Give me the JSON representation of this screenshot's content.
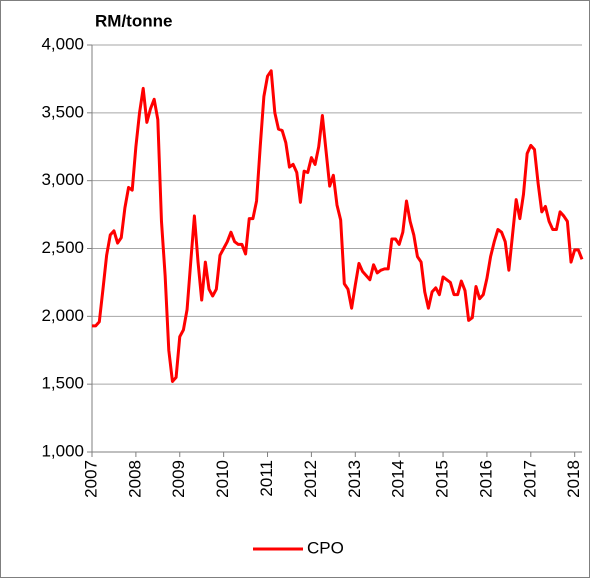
{
  "chart_data": {
    "type": "line",
    "ylabel": "RM/tonne",
    "categories": [
      "2007",
      null,
      null,
      null,
      null,
      null,
      null,
      null,
      null,
      null,
      null,
      null,
      "2008",
      null,
      null,
      null,
      null,
      null,
      null,
      null,
      null,
      null,
      null,
      null,
      "2009",
      null,
      null,
      null,
      null,
      null,
      null,
      null,
      null,
      null,
      null,
      null,
      "2010",
      null,
      null,
      null,
      null,
      null,
      null,
      null,
      null,
      null,
      null,
      null,
      "2011",
      null,
      null,
      null,
      null,
      null,
      null,
      null,
      null,
      null,
      null,
      null,
      "2012",
      null,
      null,
      null,
      null,
      null,
      null,
      null,
      null,
      null,
      null,
      null,
      "2013",
      null,
      null,
      null,
      null,
      null,
      null,
      null,
      null,
      null,
      null,
      null,
      "2014",
      null,
      null,
      null,
      null,
      null,
      null,
      null,
      null,
      null,
      null,
      null,
      "2015",
      null,
      null,
      null,
      null,
      null,
      null,
      null,
      null,
      null,
      null,
      null,
      "2016",
      null,
      null,
      null,
      null,
      null,
      null,
      null,
      null,
      null,
      null,
      null,
      "2017",
      null,
      null,
      null,
      null,
      null,
      null,
      null,
      null,
      null,
      null,
      null,
      "2018",
      null,
      null
    ],
    "series": [
      {
        "name": "CPO",
        "color": "#ff0000",
        "values": [
          1930,
          1930,
          1960,
          2200,
          2450,
          2600,
          2630,
          2540,
          2580,
          2800,
          2950,
          2930,
          3250,
          3500,
          3680,
          3430,
          3530,
          3600,
          3450,
          2700,
          2300,
          1750,
          1520,
          1550,
          1850,
          1900,
          2050,
          2400,
          2740,
          2400,
          2120,
          2400,
          2200,
          2150,
          2200,
          2450,
          2500,
          2550,
          2620,
          2550,
          2530,
          2530,
          2460,
          2720,
          2720,
          2850,
          3250,
          3620,
          3770,
          3810,
          3500,
          3380,
          3370,
          3280,
          3100,
          3120,
          3060,
          2840,
          3070,
          3060,
          3170,
          3120,
          3250,
          3480,
          3220,
          2960,
          3040,
          2820,
          2710,
          2240,
          2200,
          2060,
          2230,
          2390,
          2330,
          2300,
          2270,
          2380,
          2320,
          2340,
          2350,
          2350,
          2570,
          2570,
          2530,
          2620,
          2850,
          2700,
          2600,
          2440,
          2400,
          2180,
          2060,
          2180,
          2210,
          2160,
          2290,
          2270,
          2250,
          2160,
          2160,
          2260,
          2190,
          1970,
          1990,
          2220,
          2130,
          2160,
          2280,
          2440,
          2550,
          2640,
          2620,
          2550,
          2340,
          2600,
          2860,
          2720,
          2900,
          3200,
          3260,
          3230,
          2980,
          2770,
          2810,
          2700,
          2640,
          2640,
          2770,
          2740,
          2700,
          2400,
          2490,
          2490,
          2420
        ]
      }
    ],
    "ylim": [
      1000,
      4000
    ],
    "yticks": [
      {
        "value": 1000,
        "label": "1,000"
      },
      {
        "value": 1500,
        "label": "1,500"
      },
      {
        "value": 2000,
        "label": "2,000"
      },
      {
        "value": 2500,
        "label": "2,500"
      },
      {
        "value": 3000,
        "label": "3,000"
      },
      {
        "value": 3500,
        "label": "3,500"
      },
      {
        "value": 4000,
        "label": "4,000"
      }
    ],
    "grid": true,
    "legend": "bottom"
  }
}
